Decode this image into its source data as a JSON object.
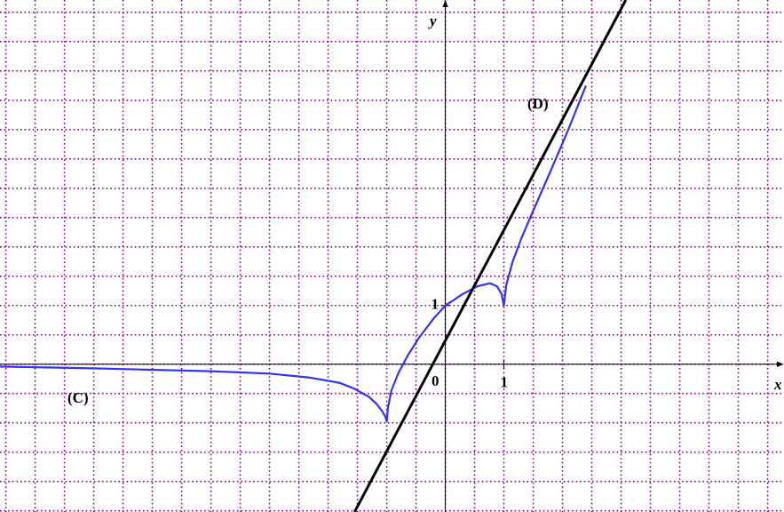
{
  "chart_data": {
    "type": "line",
    "xlabel": "x",
    "ylabel": "y",
    "origin_label": 0,
    "xlim": [
      -7.6,
      5.78
    ],
    "ylim": [
      -2.52,
      6.21
    ],
    "xticks": [
      1
    ],
    "yticks": [
      1
    ],
    "grid": true,
    "grid_step": 0.5,
    "grid_color": "#800080",
    "series": [
      {
        "name": "(C)",
        "color": "#3333ee",
        "x": [
          -7.6,
          -6,
          -4,
          -3,
          -2.3,
          -1.8,
          -1.55,
          -1.3,
          -1.17,
          -1.08,
          -1.02,
          -1,
          -0.98,
          -0.92,
          -0.8,
          -0.64,
          -0.45,
          -0.2,
          0,
          0.3,
          0.55,
          0.76,
          0.88,
          0.96,
          1,
          1.04,
          1.15,
          1.3,
          1.48,
          1.8,
          2.1,
          2.4
        ],
        "values": [
          -0.04,
          -0.07,
          -0.12,
          -0.16,
          -0.23,
          -0.32,
          -0.42,
          -0.56,
          -0.68,
          -0.8,
          -0.9,
          -0.98,
          -0.75,
          -0.45,
          -0.15,
          0.15,
          0.45,
          0.78,
          1,
          1.2,
          1.33,
          1.38,
          1.33,
          1.2,
          1,
          1.35,
          1.75,
          2.15,
          2.57,
          3.3,
          4.0,
          4.75
        ]
      },
      {
        "name": "(D)",
        "color": "#000000",
        "x": [
          -1.55,
          3.08
        ],
        "values": [
          -2.52,
          6.21
        ]
      }
    ]
  }
}
